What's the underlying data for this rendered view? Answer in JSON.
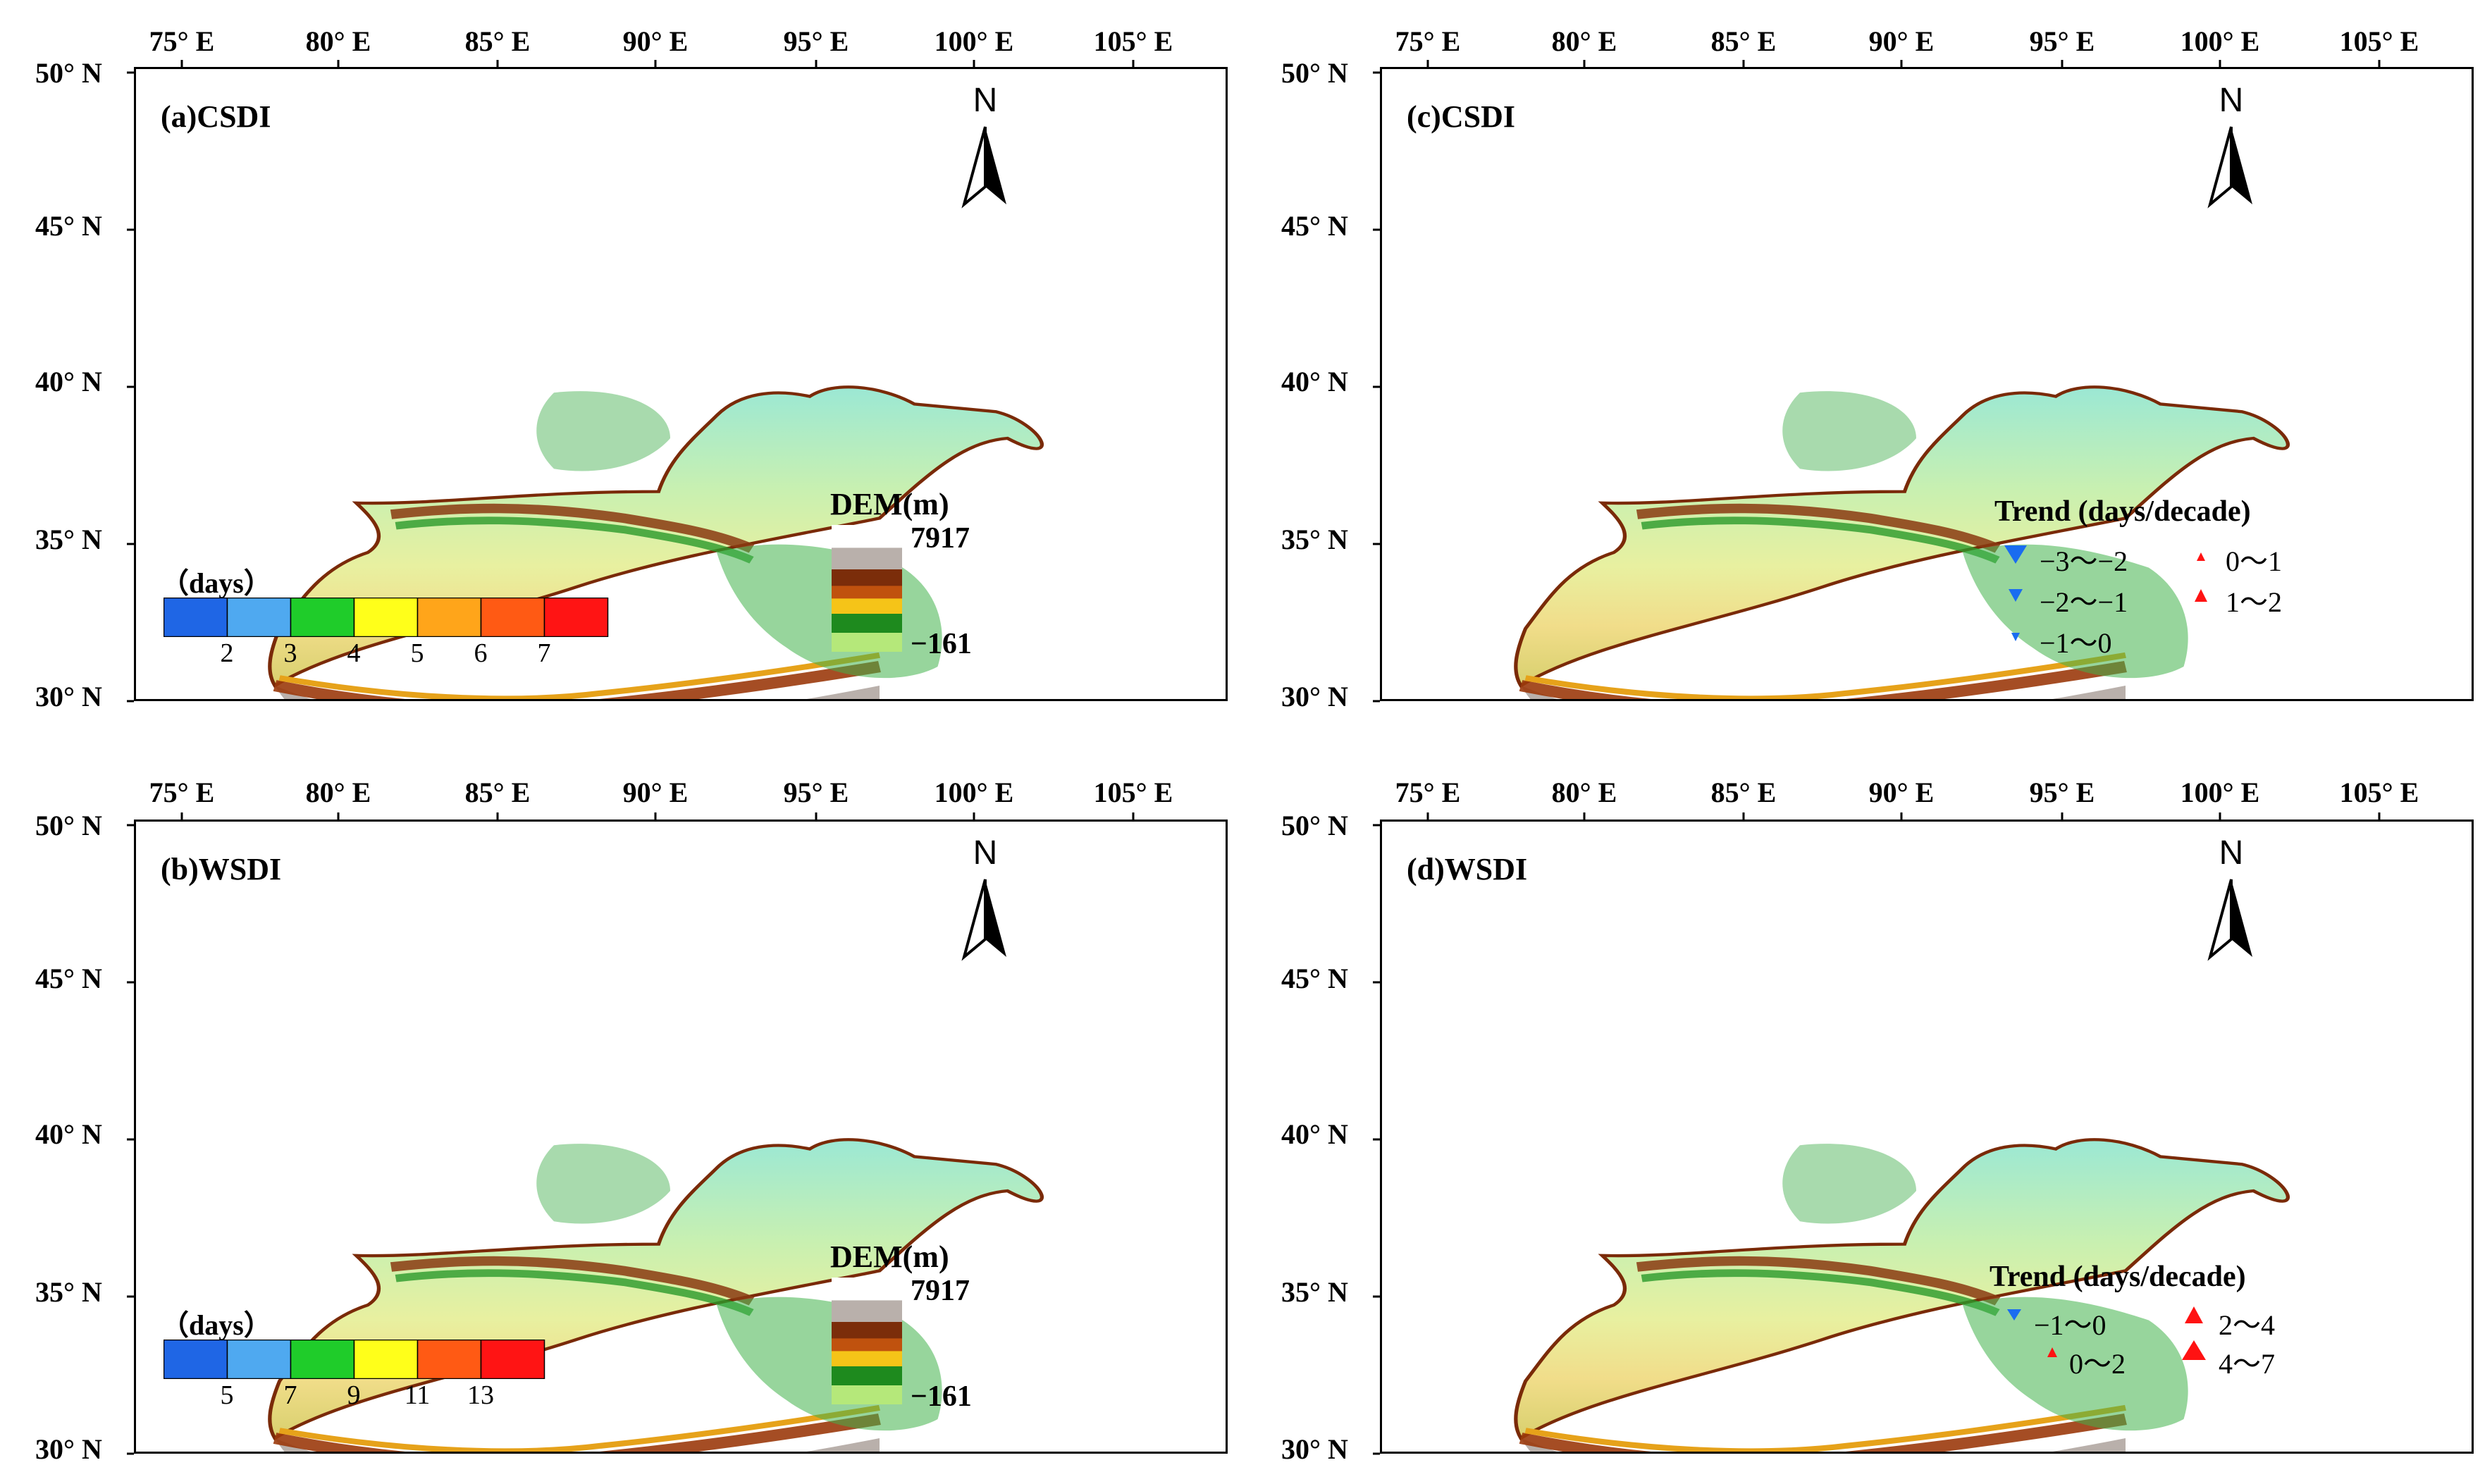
{
  "lon_labels": [
    "75° E",
    "80° E",
    "85° E",
    "90° E",
    "95° E",
    "100° E",
    "105° E"
  ],
  "lat_labels": [
    "50° N",
    "45° N",
    "40° N",
    "35° N",
    "30° N"
  ],
  "north_letter": "N",
  "dem": {
    "title": "DEM(m)",
    "max": "7917",
    "min": "−161"
  },
  "panels": {
    "a": {
      "title": "(a)CSDI",
      "unit": "（days）",
      "ticks": [
        "2",
        "3",
        "4",
        "5",
        "6",
        "7"
      ],
      "colors": [
        "#1f66e5",
        "#4fa9f0",
        "#1fcc2a",
        "#ffff1a",
        "#ffa51a",
        "#ff5a14",
        "#ff1414"
      ]
    },
    "b": {
      "title": "(b)WSDI",
      "unit": "（days）",
      "ticks": [
        "5",
        "7",
        "9",
        "11",
        "13"
      ],
      "colors": [
        "#1f66e5",
        "#4fa9f0",
        "#1fcc2a",
        "#ffff1a",
        "#ff5a14",
        "#ff1414"
      ]
    },
    "c": {
      "title": "(c)CSDI",
      "trend_title": "Trend (days/decade)",
      "items": [
        "−3～−2",
        "−2～−1",
        "−1～0",
        "0～1",
        "1～2"
      ]
    },
    "d": {
      "title": "(d)WSDI",
      "trend_title": "Trend (days/decade)",
      "items": [
        "−1～0",
        "0～2",
        "2～4",
        "4～7"
      ]
    }
  },
  "colors": {
    "decrease": "#1a6cf0",
    "increase": "#ff1212",
    "frame": "#000000"
  }
}
